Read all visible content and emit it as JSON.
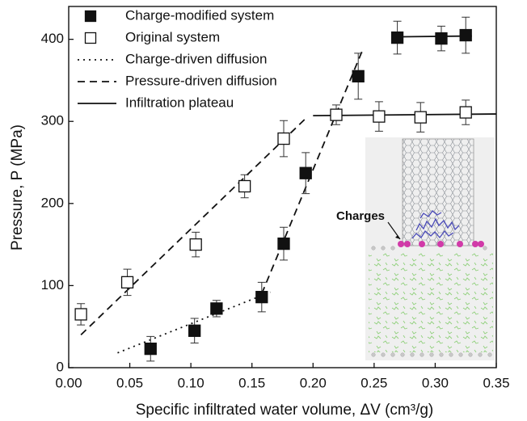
{
  "chart_data": {
    "type": "scatter",
    "xlabel": "Specific infiltrated water volume, ΔV (cm³/g)",
    "ylabel": "Pressure, P (MPa)",
    "xlim": [
      0,
      0.35
    ],
    "ylim": [
      0,
      440
    ],
    "xticks": [
      {
        "value": 0,
        "label": "0.00"
      },
      {
        "value": 0.05,
        "label": "0.05"
      },
      {
        "value": 0.1,
        "label": "0.10"
      },
      {
        "value": 0.15,
        "label": "0.15"
      },
      {
        "value": 0.2,
        "label": "0.20"
      },
      {
        "value": 0.25,
        "label": "0.25"
      },
      {
        "value": 0.3,
        "label": "0.30"
      },
      {
        "value": 0.35,
        "label": "0.35"
      }
    ],
    "yticks": [
      0,
      100,
      200,
      300,
      400
    ],
    "legend": "upper left",
    "series": [
      {
        "name": "Charge-modified system",
        "color": "#111111",
        "marker": "filled-square",
        "x": [
          0.067,
          0.103,
          0.121,
          0.158,
          0.176,
          0.194,
          0.237,
          0.269,
          0.305,
          0.325
        ],
        "values": [
          23,
          45,
          72,
          86,
          151,
          237,
          355,
          402,
          401,
          405
        ],
        "errors": [
          15,
          15,
          10,
          18,
          20,
          25,
          28,
          20,
          15,
          22
        ]
      },
      {
        "name": "Original system",
        "color": "#111111",
        "marker": "open-square",
        "x": [
          0.01,
          0.048,
          0.104,
          0.144,
          0.176,
          0.219,
          0.254,
          0.288,
          0.325
        ],
        "values": [
          65,
          104,
          150,
          221,
          279,
          308,
          306,
          305,
          311
        ],
        "errors": [
          13,
          16,
          15,
          14,
          22,
          12,
          18,
          18,
          15
        ]
      }
    ],
    "lines": [
      {
        "name": "Charge-driven diffusion",
        "style": "dotted",
        "x": [
          0.04,
          0.165
        ],
        "values": [
          18,
          92
        ]
      },
      {
        "name": "Pressure-driven diffusion",
        "style": "dashed",
        "x": [
          0.01,
          0.195,
          null,
          0.158,
          0.24
        ],
        "values": [
          40,
          305,
          null,
          90,
          385
        ]
      },
      {
        "name": "Infiltration plateau",
        "style": "solid",
        "x": [
          0.2,
          0.35,
          null,
          0.265,
          0.33
        ],
        "values": [
          307,
          309,
          null,
          403,
          404
        ]
      }
    ],
    "annotations": [
      "Charges"
    ]
  }
}
